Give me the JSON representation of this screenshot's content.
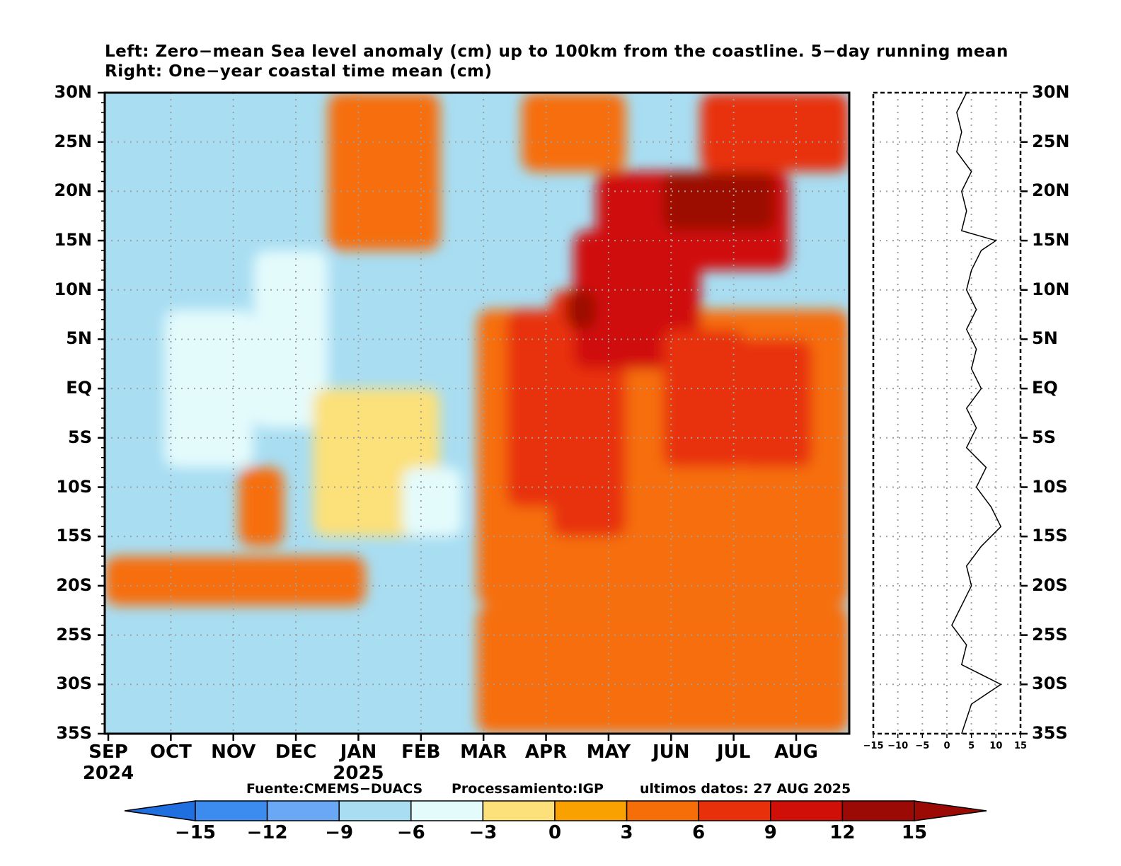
{
  "chart_data": [
    {
      "type": "heatmap",
      "title_lines": [
        "Left: Zero−mean Sea level anomaly (cm) up to 100km from the coastline. 5−day running mean",
        "Right: One−year coastal time mean (cm)"
      ],
      "y_ticks": [
        "30N",
        "25N",
        "20N",
        "15N",
        "10N",
        "5N",
        "EQ",
        "5S",
        "10S",
        "15S",
        "20S",
        "25S",
        "30S",
        "35S"
      ],
      "y_range": [
        -35,
        30
      ],
      "x_ticks": [
        "SEP",
        "OCT",
        "NOV",
        "DEC",
        "JAN",
        "FEB",
        "MAR",
        "APR",
        "MAY",
        "JUN",
        "JUL",
        "AUG"
      ],
      "year_ticks": [
        "2024",
        "2025"
      ],
      "grid": true,
      "colorbar": {
        "ticks": [
          "−15",
          "−12",
          "−9",
          "−6",
          "−3",
          "0",
          "3",
          "6",
          "9",
          "12",
          "15"
        ],
        "colors": [
          "#1f6fe0",
          "#3c8cf0",
          "#6aa8f5",
          "#a8ddf2",
          "#e4fbfc",
          "#fce079",
          "#f8a100",
          "#f66e08",
          "#e8300a",
          "#d01008",
          "#9c0a05"
        ]
      },
      "regions": [
        {
          "t0": 0.5,
          "t1": 1.0,
          "lat0": -35,
          "lat1": -22,
          "value": 3
        },
        {
          "t0": 0.5,
          "t1": 1.0,
          "lat0": -22,
          "lat1": 8,
          "value": 3
        },
        {
          "t0": 0.54,
          "t1": 0.64,
          "lat0": -12,
          "lat1": 8,
          "value": 6
        },
        {
          "t0": 0.6,
          "t1": 0.7,
          "lat0": -15,
          "lat1": 10,
          "value": 6
        },
        {
          "t0": 0.63,
          "t1": 0.8,
          "lat0": 2,
          "lat1": 16,
          "value": 9
        },
        {
          "t0": 0.66,
          "t1": 0.92,
          "lat0": 12,
          "lat1": 22,
          "value": 9
        },
        {
          "t0": 0.75,
          "t1": 0.86,
          "lat0": -8,
          "lat1": 6,
          "value": 6
        },
        {
          "t0": 0.85,
          "t1": 0.95,
          "lat0": -8,
          "lat1": 5,
          "value": 6
        },
        {
          "t0": 0.75,
          "t1": 0.9,
          "lat0": 16,
          "lat1": 22,
          "value": 12
        },
        {
          "t0": 0.62,
          "t1": 0.66,
          "lat0": 6,
          "lat1": 10,
          "value": 12
        },
        {
          "t0": 0.0,
          "t1": 0.35,
          "lat0": -22,
          "lat1": -17,
          "value": 3
        },
        {
          "t0": 0.18,
          "t1": 0.24,
          "lat0": -16,
          "lat1": -8,
          "value": 3
        },
        {
          "t0": 0.08,
          "t1": 0.2,
          "lat0": -8,
          "lat1": 8,
          "value": -6
        },
        {
          "t0": 0.2,
          "t1": 0.3,
          "lat0": -4,
          "lat1": 14,
          "value": -6
        },
        {
          "t0": 0.28,
          "t1": 0.45,
          "lat0": -15,
          "lat1": 0,
          "value": -3
        },
        {
          "t0": 0.4,
          "t1": 0.48,
          "lat0": -15,
          "lat1": -8,
          "value": -6
        },
        {
          "t0": 0.3,
          "t1": 0.45,
          "lat0": 14,
          "lat1": 30,
          "value": 3
        },
        {
          "t0": 0.56,
          "t1": 0.7,
          "lat0": 22,
          "lat1": 30,
          "value": 3
        },
        {
          "t0": 0.8,
          "t1": 1.0,
          "lat0": 22,
          "lat1": 30,
          "value": 6
        }
      ],
      "right_panel": {
        "xticks": [
          "−15",
          "−10",
          "−5",
          "0",
          "5",
          "10",
          "15"
        ],
        "x_range": [
          -15,
          15
        ],
        "lat": [
          30,
          28,
          26,
          24,
          22,
          20,
          18,
          16,
          15,
          14,
          12,
          10,
          8,
          6,
          4,
          2,
          0,
          -2,
          -4,
          -6,
          -8,
          -10,
          -12,
          -14,
          -16,
          -18,
          -20,
          -22,
          -24,
          -26,
          -28,
          -30,
          -32,
          -35
        ],
        "mean": [
          4,
          2,
          3,
          2,
          5,
          3,
          4,
          3,
          10,
          7,
          5,
          4,
          6,
          4,
          6,
          5,
          7,
          4,
          6,
          4,
          8,
          6,
          9,
          11,
          7,
          4,
          5,
          3,
          1,
          4,
          3,
          11,
          5,
          3
        ]
      }
    }
  ],
  "credits": {
    "source": "Fuente:CMEMS−DUACS",
    "processing": "Processamiento:IGP",
    "last_data": "ultimos datos: 27 AUG 2025"
  }
}
